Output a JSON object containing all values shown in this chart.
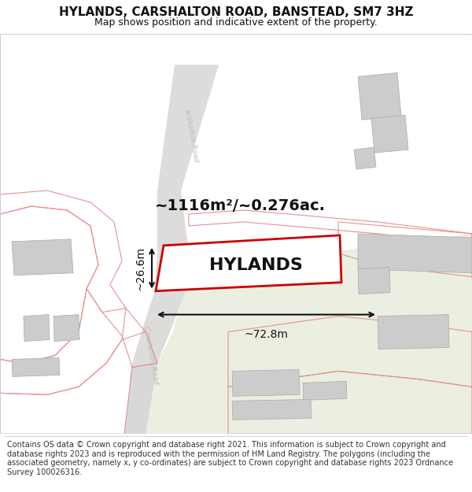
{
  "title": "HYLANDS, CARSHALTON ROAD, BANSTEAD, SM7 3HZ",
  "subtitle": "Map shows position and indicative extent of the property.",
  "footer": "Contains OS data © Crown copyright and database right 2021. This information is subject to Crown copyright and database rights 2023 and is reproduced with the permission of HM Land Registry. The polygons (including the associated geometry, namely x, y co-ordinates) are subject to Crown copyright and database rights 2023 Ordnance Survey 100026316.",
  "area_label": "~1116m²/~0.276ac.",
  "property_label": "HYLANDS",
  "width_label": "~72.8m",
  "height_label": "~26.6m",
  "bg_color": "#ffffff",
  "green_color": "#eaefe2",
  "road_color": "#dddcdb",
  "gray_building": "#cccccc",
  "pink_outline": "#e89090",
  "red_outline": "#cc0000",
  "dim_arrow_color": "#111111",
  "title_color": "#111111",
  "road_label_color": "#bbbbbb",
  "title_fontsize": 11,
  "subtitle_fontsize": 9,
  "footer_fontsize": 7,
  "area_fontsize": 14,
  "property_fontsize": 16,
  "dim_fontsize": 10
}
